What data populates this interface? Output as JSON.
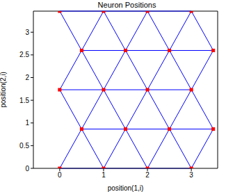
{
  "chart_data": {
    "type": "scatter",
    "title": "Neuron Positions",
    "x_label": "position(1,i)",
    "y_label": "position(2,i)",
    "x": [
      0,
      1,
      2,
      3,
      0.5,
      1.5,
      2.5,
      3.5,
      0,
      1,
      2,
      3,
      0.5,
      1.5,
      2.5,
      3.5,
      0,
      1,
      2,
      3
    ],
    "values": [
      0,
      0,
      0,
      0,
      0.866,
      0.866,
      0.866,
      0.866,
      1.732,
      1.732,
      1.732,
      1.732,
      2.598,
      2.598,
      2.598,
      2.598,
      3.464,
      3.464,
      3.464,
      3.464
    ],
    "links": [
      [
        0,
        1
      ],
      [
        1,
        2
      ],
      [
        2,
        3
      ],
      [
        4,
        5
      ],
      [
        5,
        6
      ],
      [
        6,
        7
      ],
      [
        8,
        9
      ],
      [
        9,
        10
      ],
      [
        10,
        11
      ],
      [
        12,
        13
      ],
      [
        13,
        14
      ],
      [
        14,
        15
      ],
      [
        16,
        17
      ],
      [
        17,
        18
      ],
      [
        18,
        19
      ],
      [
        0,
        4
      ],
      [
        1,
        5
      ],
      [
        2,
        6
      ],
      [
        3,
        7
      ],
      [
        1,
        4
      ],
      [
        2,
        5
      ],
      [
        3,
        6
      ],
      [
        4,
        8
      ],
      [
        5,
        9
      ],
      [
        6,
        10
      ],
      [
        7,
        11
      ],
      [
        4,
        9
      ],
      [
        5,
        10
      ],
      [
        6,
        11
      ],
      [
        8,
        12
      ],
      [
        9,
        13
      ],
      [
        10,
        14
      ],
      [
        11,
        15
      ],
      [
        9,
        12
      ],
      [
        10,
        13
      ],
      [
        11,
        14
      ],
      [
        12,
        16
      ],
      [
        13,
        17
      ],
      [
        14,
        18
      ],
      [
        15,
        19
      ],
      [
        12,
        17
      ],
      [
        13,
        18
      ],
      [
        14,
        19
      ]
    ],
    "color": "#ff0000",
    "line_color": "#0000ff",
    "marker": "square",
    "xlim": [
      -0.6,
      3.6
    ],
    "ylim": [
      0,
      3.464
    ],
    "xticks": [
      0,
      1,
      2,
      3
    ],
    "yticks": [
      0,
      0.5,
      1,
      1.5,
      2,
      2.5,
      3
    ],
    "grid": false
  }
}
